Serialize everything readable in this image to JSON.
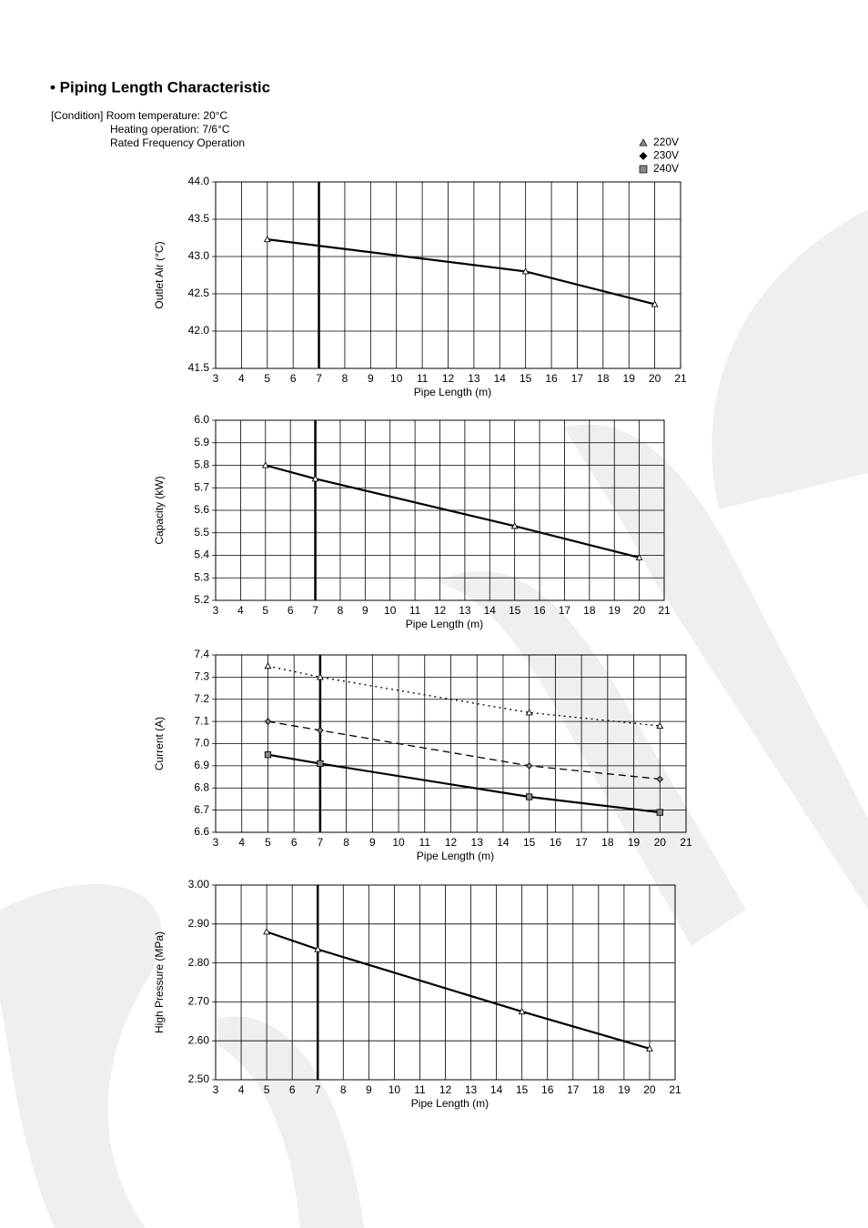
{
  "title": "• Piping Length Characteristic",
  "condition": [
    "[Condition] Room temperature: 20°C",
    "Heating operation: 7/6°C",
    "Rated Frequency Operation"
  ],
  "legend": [
    {
      "name": "220V",
      "marker": "triangle",
      "color": "#888888"
    },
    {
      "name": "230V",
      "marker": "diamond",
      "color": "#000000"
    },
    {
      "name": "240V",
      "marker": "square",
      "color": "#888888"
    }
  ],
  "chart_data": [
    {
      "type": "line",
      "ylabel": "Outlet Air (°C)",
      "xlabel": "Pipe Length (m)",
      "xlim": [
        3,
        21
      ],
      "xticks": [
        3,
        4,
        5,
        6,
        7,
        8,
        9,
        10,
        11,
        12,
        13,
        14,
        15,
        16,
        17,
        18,
        19,
        20,
        21
      ],
      "ylim": [
        41.5,
        44
      ],
      "yticks": [
        41.5,
        {
          "value": 42,
          "label": "42.0"
        },
        42.5,
        {
          "value": 43,
          "label": "43.0"
        },
        43.5,
        {
          "value": 44,
          "label": "44.0"
        }
      ],
      "grid": true,
      "vline": 7,
      "series": [
        {
          "color": "#000000",
          "marker": "triangle",
          "dash": "solid",
          "x": [
            5,
            15,
            20
          ],
          "values": [
            43.23,
            42.8,
            42.36
          ]
        }
      ]
    },
    {
      "type": "line",
      "ylabel": "Capacity (kW)",
      "xlabel": "Pipe Length (m)",
      "xlim": [
        3,
        21
      ],
      "xticks": [
        3,
        4,
        5,
        6,
        7,
        8,
        9,
        10,
        11,
        12,
        13,
        14,
        15,
        16,
        17,
        18,
        19,
        20,
        21
      ],
      "ylim": [
        5.2,
        6
      ],
      "yticks": [
        5.2,
        5.3,
        5.4,
        5.5,
        5.6,
        5.7,
        5.8,
        5.9,
        {
          "value": 6,
          "label": "6.0"
        }
      ],
      "grid": true,
      "vline": 7,
      "series": [
        {
          "color": "#000000",
          "marker": "triangle",
          "dash": "solid",
          "x": [
            5,
            7,
            15,
            20
          ],
          "values": [
            5.8,
            5.74,
            5.53,
            5.39
          ]
        }
      ]
    },
    {
      "type": "line",
      "ylabel": "Current (A)",
      "xlabel": "Pipe Length (m)",
      "xlim": [
        3,
        21
      ],
      "xticks": [
        3,
        4,
        5,
        6,
        7,
        8,
        9,
        10,
        11,
        12,
        13,
        14,
        15,
        16,
        17,
        18,
        19,
        20,
        21
      ],
      "ylim": [
        6.6,
        7.4
      ],
      "yticks": [
        6.6,
        6.7,
        6.8,
        6.9,
        {
          "value": 7,
          "label": "7.0"
        },
        7.1,
        7.2,
        7.3,
        7.4
      ],
      "grid": true,
      "vline": 7,
      "series": [
        {
          "color": "#000000",
          "marker": "triangle",
          "dash": "dotted",
          "x": [
            5,
            7,
            15,
            20
          ],
          "values": [
            7.35,
            7.3,
            7.14,
            7.08
          ]
        },
        {
          "color": "#000000",
          "marker": "diamond",
          "dash": "dashed",
          "x": [
            5,
            7,
            15,
            20
          ],
          "values": [
            7.1,
            7.06,
            6.9,
            6.84
          ]
        },
        {
          "color": "#000000",
          "marker": "square",
          "dash": "solid",
          "x": [
            5,
            7,
            15,
            20
          ],
          "values": [
            6.95,
            6.91,
            6.76,
            6.69
          ]
        }
      ]
    },
    {
      "type": "line",
      "ylabel": "High Pressure (MPa)",
      "xlabel": "Pipe Length (m)",
      "xlim": [
        3,
        21
      ],
      "xticks": [
        3,
        4,
        5,
        6,
        7,
        8,
        9,
        10,
        11,
        12,
        13,
        14,
        15,
        16,
        17,
        18,
        19,
        20,
        21
      ],
      "ylim": [
        2.5,
        3
      ],
      "yticks": [
        {
          "value": 2.5,
          "label": "2.50"
        },
        {
          "value": 2.6,
          "label": "2.60"
        },
        {
          "value": 2.7,
          "label": "2.70"
        },
        {
          "value": 2.8,
          "label": "2.80"
        },
        {
          "value": 2.9,
          "label": "2.90"
        },
        {
          "value": 3,
          "label": "3.00"
        }
      ],
      "grid": true,
      "vline": 7,
      "series": [
        {
          "color": "#000000",
          "marker": "triangle",
          "dash": "solid",
          "x": [
            5,
            7,
            15,
            20
          ],
          "values": [
            2.88,
            2.835,
            2.675,
            2.58
          ]
        }
      ]
    }
  ]
}
